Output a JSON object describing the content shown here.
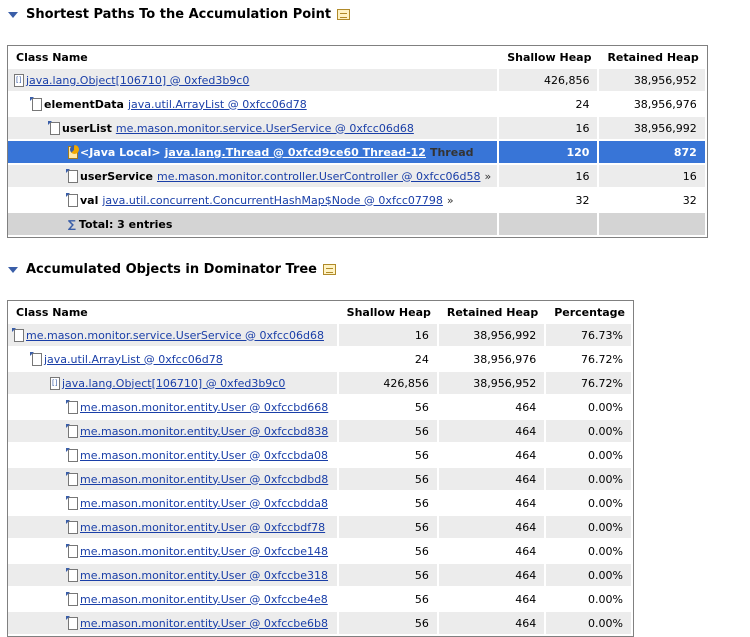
{
  "section1": {
    "title": "Shortest Paths To the Accumulation Point",
    "columns": [
      "Class Name",
      "Shallow Heap",
      "Retained Heap"
    ],
    "rows": [
      {
        "label": "",
        "link": "java.lang.Object[106710] @ 0xfed3b9c0",
        "suffix": "",
        "shallow": "426,856",
        "retained": "38,956,952",
        "style": "odd",
        "indent": 0,
        "icon": "array"
      },
      {
        "label": "elementData",
        "link": "java.util.ArrayList @ 0xfcc06d78",
        "suffix": "",
        "shallow": "24",
        "retained": "38,956,976",
        "style": "even",
        "indent": 1,
        "icon": "object"
      },
      {
        "label": "userList",
        "link": "me.mason.monitor.service.UserService @ 0xfcc06d68",
        "suffix": "",
        "shallow": "16",
        "retained": "38,956,992",
        "style": "odd",
        "indent": 2,
        "icon": "object"
      },
      {
        "label": "<Java Local>",
        "link": "java.lang.Thread @ 0xfcd9ce60 Thread-12",
        "suffix": "Thread",
        "shallow": "120",
        "retained": "872",
        "style": "selected",
        "indent": 3,
        "icon": "local"
      },
      {
        "label": "userService",
        "link": "me.mason.monitor.controller.UserController @ 0xfcc06d58",
        "suffix": "»",
        "shallow": "16",
        "retained": "16",
        "style": "odd",
        "indent": 3,
        "icon": "object"
      },
      {
        "label": "val",
        "link": "java.util.concurrent.ConcurrentHashMap$Node @ 0xfcc07798",
        "suffix": "»",
        "shallow": "32",
        "retained": "32",
        "style": "even",
        "indent": 3,
        "icon": "object"
      }
    ],
    "total": "Total: 3 entries"
  },
  "section2": {
    "title": "Accumulated Objects in Dominator Tree",
    "columns": [
      "Class Name",
      "Shallow Heap",
      "Retained Heap",
      "Percentage"
    ],
    "rows": [
      {
        "link": "me.mason.monitor.service.UserService @ 0xfcc06d68",
        "shallow": "16",
        "retained": "38,956,992",
        "pct": "76.73%",
        "indent": 0,
        "icon": "object"
      },
      {
        "link": "java.util.ArrayList @ 0xfcc06d78",
        "shallow": "24",
        "retained": "38,956,976",
        "pct": "76.72%",
        "indent": 1,
        "icon": "object"
      },
      {
        "link": "java.lang.Object[106710] @ 0xfed3b9c0",
        "shallow": "426,856",
        "retained": "38,956,952",
        "pct": "76.72%",
        "indent": 2,
        "icon": "array"
      },
      {
        "link": "me.mason.monitor.entity.User @ 0xfccbd668",
        "shallow": "56",
        "retained": "464",
        "pct": "0.00%",
        "indent": 3,
        "icon": "object"
      },
      {
        "link": "me.mason.monitor.entity.User @ 0xfccbd838",
        "shallow": "56",
        "retained": "464",
        "pct": "0.00%",
        "indent": 3,
        "icon": "object"
      },
      {
        "link": "me.mason.monitor.entity.User @ 0xfccbda08",
        "shallow": "56",
        "retained": "464",
        "pct": "0.00%",
        "indent": 3,
        "icon": "object"
      },
      {
        "link": "me.mason.monitor.entity.User @ 0xfccbdbd8",
        "shallow": "56",
        "retained": "464",
        "pct": "0.00%",
        "indent": 3,
        "icon": "object"
      },
      {
        "link": "me.mason.monitor.entity.User @ 0xfccbdda8",
        "shallow": "56",
        "retained": "464",
        "pct": "0.00%",
        "indent": 3,
        "icon": "object"
      },
      {
        "link": "me.mason.monitor.entity.User @ 0xfccbdf78",
        "shallow": "56",
        "retained": "464",
        "pct": "0.00%",
        "indent": 3,
        "icon": "object"
      },
      {
        "link": "me.mason.monitor.entity.User @ 0xfccbe148",
        "shallow": "56",
        "retained": "464",
        "pct": "0.00%",
        "indent": 3,
        "icon": "object"
      },
      {
        "link": "me.mason.monitor.entity.User @ 0xfccbe318",
        "shallow": "56",
        "retained": "464",
        "pct": "0.00%",
        "indent": 3,
        "icon": "object"
      },
      {
        "link": "me.mason.monitor.entity.User @ 0xfccbe4e8",
        "shallow": "56",
        "retained": "464",
        "pct": "0.00%",
        "indent": 3,
        "icon": "object"
      },
      {
        "link": "me.mason.monitor.entity.User @ 0xfccbe6b8",
        "shallow": "56",
        "retained": "464",
        "pct": "0.00%",
        "indent": 3,
        "icon": "object"
      }
    ]
  }
}
